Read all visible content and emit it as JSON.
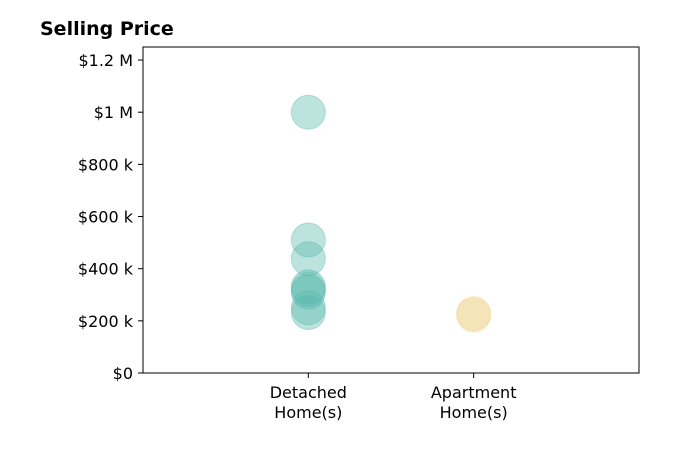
{
  "chart_data": {
    "type": "scatter",
    "title": "Selling Price",
    "xlabel": "",
    "ylabel": "",
    "categories": [
      "Detached\nHome(s)",
      "Apartment\nHome(s)"
    ],
    "xlim": [
      -1,
      2
    ],
    "ylim": [
      0,
      1250000
    ],
    "yticks": [
      0,
      200000,
      400000,
      600000,
      800000,
      1000000,
      1200000
    ],
    "ytick_labels": [
      "$0",
      "$200 k",
      "$400 k",
      "$600 k",
      "$800 k",
      "$1 M",
      "$1.2 M"
    ],
    "grid": false,
    "series": [
      {
        "category": "Detached\nHome(s)",
        "color": "#5bb8ad",
        "values": [
          1000000,
          510000,
          438000,
          330000,
          320000,
          310000,
          250000,
          232000
        ]
      },
      {
        "category": "Apartment\nHome(s)",
        "color": "#f0d591",
        "values": [
          228000,
          222000
        ]
      }
    ]
  }
}
